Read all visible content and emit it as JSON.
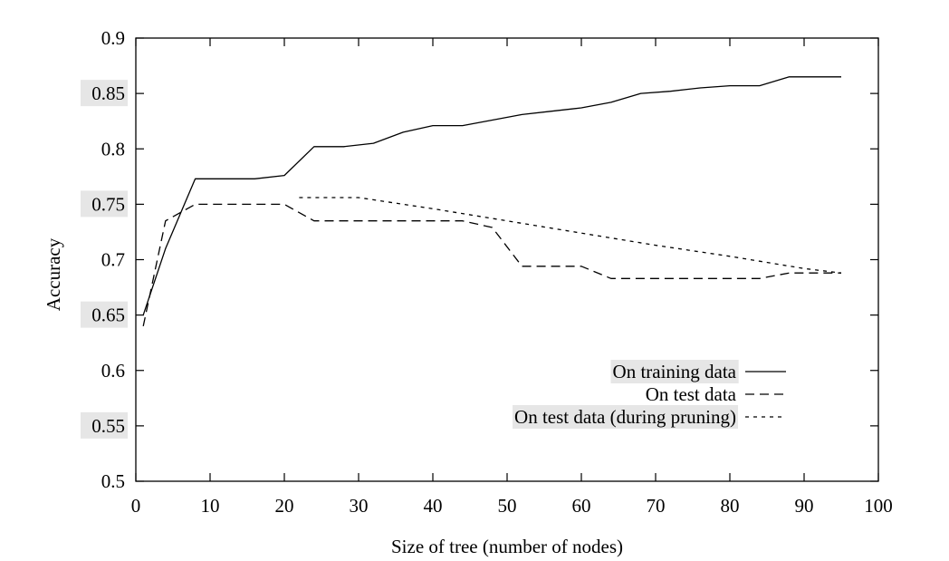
{
  "chart_data": {
    "type": "line",
    "title": "",
    "xlabel": "Size of tree (number of nodes)",
    "ylabel": "Accuracy",
    "xlim": [
      0,
      100
    ],
    "ylim": [
      0.5,
      0.9
    ],
    "x_ticks": [
      "0",
      "10",
      "20",
      "30",
      "40",
      "50",
      "60",
      "70",
      "80",
      "90",
      "100"
    ],
    "y_ticks": [
      "0.5",
      "0.55",
      "0.6",
      "0.65",
      "0.7",
      "0.75",
      "0.8",
      "0.85",
      "0.9"
    ],
    "grid": false,
    "legend_position": "lower-right",
    "highlight_color": "#e6e6e6",
    "series": [
      {
        "name": "On training data",
        "style": "solid",
        "points": [
          [
            1,
            0.65
          ],
          [
            4,
            0.71
          ],
          [
            8,
            0.773
          ],
          [
            12,
            0.773
          ],
          [
            16,
            0.773
          ],
          [
            20,
            0.776
          ],
          [
            24,
            0.802
          ],
          [
            28,
            0.802
          ],
          [
            32,
            0.805
          ],
          [
            36,
            0.815
          ],
          [
            40,
            0.821
          ],
          [
            44,
            0.821
          ],
          [
            48,
            0.826
          ],
          [
            52,
            0.831
          ],
          [
            56,
            0.834
          ],
          [
            60,
            0.837
          ],
          [
            64,
            0.842
          ],
          [
            68,
            0.85
          ],
          [
            72,
            0.852
          ],
          [
            76,
            0.855
          ],
          [
            80,
            0.857
          ],
          [
            84,
            0.857
          ],
          [
            88,
            0.865
          ],
          [
            92,
            0.865
          ],
          [
            95,
            0.865
          ]
        ]
      },
      {
        "name": "On test data",
        "style": "dashed",
        "points": [
          [
            1,
            0.64
          ],
          [
            4,
            0.735
          ],
          [
            8,
            0.75
          ],
          [
            12,
            0.75
          ],
          [
            16,
            0.75
          ],
          [
            20,
            0.75
          ],
          [
            24,
            0.735
          ],
          [
            28,
            0.735
          ],
          [
            32,
            0.735
          ],
          [
            36,
            0.735
          ],
          [
            40,
            0.735
          ],
          [
            44,
            0.735
          ],
          [
            48,
            0.729
          ],
          [
            52,
            0.694
          ],
          [
            56,
            0.694
          ],
          [
            60,
            0.694
          ],
          [
            64,
            0.683
          ],
          [
            68,
            0.683
          ],
          [
            72,
            0.683
          ],
          [
            76,
            0.683
          ],
          [
            80,
            0.683
          ],
          [
            84,
            0.683
          ],
          [
            88,
            0.688
          ],
          [
            92,
            0.688
          ],
          [
            95,
            0.688
          ]
        ]
      },
      {
        "name": "On test data (during pruning)",
        "style": "dotted",
        "points": [
          [
            22,
            0.756
          ],
          [
            30,
            0.756
          ],
          [
            40,
            0.746
          ],
          [
            50,
            0.735
          ],
          [
            60,
            0.724
          ],
          [
            70,
            0.713
          ],
          [
            80,
            0.703
          ],
          [
            90,
            0.692
          ],
          [
            95,
            0.688
          ]
        ]
      }
    ]
  }
}
